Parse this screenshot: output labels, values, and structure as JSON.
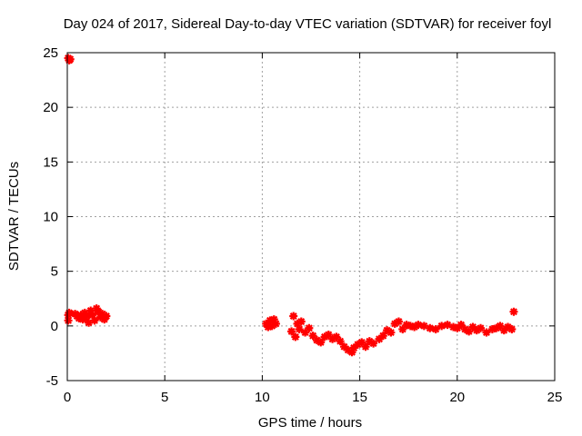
{
  "chart_data": {
    "type": "scatter",
    "title": "Day 024 of 2017, Sidereal Day-to-day VTEC variation (SDTVAR) for receiver foyl",
    "xlabel": "GPS time / hours",
    "ylabel": "SDTVAR / TECUs",
    "xlim": [
      0,
      25
    ],
    "ylim": [
      -5,
      25
    ],
    "xticks": [
      0,
      5,
      10,
      15,
      20,
      25
    ],
    "yticks": [
      -5,
      0,
      5,
      10,
      15,
      20,
      25
    ],
    "grid": true,
    "marker": "red star",
    "series_color": "#ff0000",
    "series": [
      {
        "name": "SDTVAR",
        "points": [
          [
            0.05,
            24.5
          ],
          [
            0.1,
            24.3
          ],
          [
            0.15,
            24.4
          ],
          [
            0.05,
            1.0
          ],
          [
            0.05,
            0.5
          ],
          [
            0.1,
            1.2
          ],
          [
            0.4,
            1.1
          ],
          [
            0.5,
            0.9
          ],
          [
            0.6,
            0.7
          ],
          [
            0.7,
            1.0
          ],
          [
            0.8,
            0.6
          ],
          [
            0.9,
            1.2
          ],
          [
            1.0,
            0.9
          ],
          [
            1.1,
            0.3
          ],
          [
            1.2,
            1.4
          ],
          [
            1.3,
            1.0
          ],
          [
            1.4,
            0.5
          ],
          [
            1.5,
            1.6
          ],
          [
            1.6,
            1.3
          ],
          [
            1.7,
            0.8
          ],
          [
            1.8,
            1.1
          ],
          [
            1.9,
            0.6
          ],
          [
            2.0,
            0.9
          ],
          [
            10.2,
            0.2
          ],
          [
            10.3,
            -0.1
          ],
          [
            10.4,
            0.5
          ],
          [
            10.5,
            0.0
          ],
          [
            10.6,
            0.6
          ],
          [
            10.7,
            0.2
          ],
          [
            11.5,
            -0.5
          ],
          [
            11.6,
            0.9
          ],
          [
            11.7,
            -1.0
          ],
          [
            11.8,
            0.2
          ],
          [
            11.9,
            -0.3
          ],
          [
            12.0,
            0.4
          ],
          [
            12.2,
            -0.6
          ],
          [
            12.4,
            -0.2
          ],
          [
            12.6,
            -0.9
          ],
          [
            12.8,
            -1.3
          ],
          [
            13.0,
            -1.5
          ],
          [
            13.2,
            -1.0
          ],
          [
            13.4,
            -0.8
          ],
          [
            13.6,
            -1.2
          ],
          [
            13.8,
            -1.0
          ],
          [
            14.0,
            -1.4
          ],
          [
            14.2,
            -1.9
          ],
          [
            14.4,
            -2.2
          ],
          [
            14.6,
            -2.4
          ],
          [
            14.7,
            -2.0
          ],
          [
            14.9,
            -1.7
          ],
          [
            15.1,
            -1.5
          ],
          [
            15.3,
            -1.9
          ],
          [
            15.5,
            -1.4
          ],
          [
            15.7,
            -1.6
          ],
          [
            16.0,
            -1.2
          ],
          [
            16.2,
            -0.9
          ],
          [
            16.4,
            -0.4
          ],
          [
            16.6,
            -0.6
          ],
          [
            16.8,
            0.2
          ],
          [
            17.0,
            0.4
          ],
          [
            17.2,
            -0.3
          ],
          [
            17.4,
            0.1
          ],
          [
            17.6,
            0.0
          ],
          [
            17.8,
            -0.1
          ],
          [
            18.0,
            0.1
          ],
          [
            18.3,
            0.0
          ],
          [
            18.6,
            -0.2
          ],
          [
            18.9,
            -0.3
          ],
          [
            19.2,
            0.0
          ],
          [
            19.5,
            0.1
          ],
          [
            19.8,
            -0.1
          ],
          [
            20.0,
            -0.2
          ],
          [
            20.2,
            0.1
          ],
          [
            20.4,
            -0.3
          ],
          [
            20.6,
            -0.5
          ],
          [
            20.8,
            -0.1
          ],
          [
            21.0,
            -0.4
          ],
          [
            21.2,
            -0.2
          ],
          [
            21.5,
            -0.6
          ],
          [
            21.8,
            -0.3
          ],
          [
            22.0,
            -0.2
          ],
          [
            22.2,
            0.0
          ],
          [
            22.4,
            -0.4
          ],
          [
            22.6,
            -0.1
          ],
          [
            22.8,
            -0.3
          ],
          [
            22.9,
            1.3
          ]
        ]
      }
    ]
  }
}
